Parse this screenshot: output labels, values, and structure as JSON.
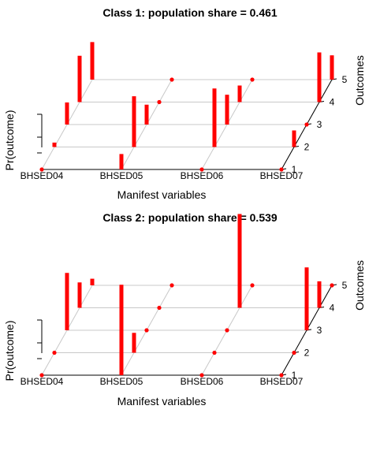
{
  "chart_data": [
    {
      "type": "bar",
      "title": "Class 1: population share = 0.461",
      "xlabel": "Manifest variables",
      "ylabel": "Pr(outcome)",
      "zlabel": "Outcomes",
      "categories": [
        "BHSED04",
        "BHSED05",
        "BHSED06",
        "BHSED07"
      ],
      "outcomes": [
        "1",
        "2",
        "3",
        "4",
        "5"
      ],
      "bar_color": "#ff0000",
      "values": [
        [
          0.0,
          0.04,
          0.2,
          0.42,
          0.34
        ],
        [
          0.14,
          0.46,
          0.18,
          0.0,
          0.0
        ],
        [
          0.0,
          0.53,
          0.27,
          0.15,
          0.0
        ],
        [
          0.0,
          0.15,
          0.0,
          0.45,
          0.22
        ]
      ]
    },
    {
      "type": "bar",
      "title": "Class 2: population share = 0.539",
      "xlabel": "Manifest variables",
      "ylabel": "Pr(outcome)",
      "zlabel": "Outcomes",
      "categories": [
        "BHSED04",
        "BHSED05",
        "BHSED06",
        "BHSED07"
      ],
      "outcomes": [
        "1",
        "2",
        "3",
        "4",
        "5"
      ],
      "bar_color": "#ff0000",
      "values": [
        [
          0.0,
          0.0,
          0.52,
          0.23,
          0.06
        ],
        [
          0.82,
          0.18,
          0.0,
          0.0,
          0.0
        ],
        [
          0.0,
          0.0,
          0.0,
          0.85,
          0.0
        ],
        [
          0.0,
          0.0,
          0.57,
          0.24,
          0.0
        ]
      ]
    }
  ]
}
